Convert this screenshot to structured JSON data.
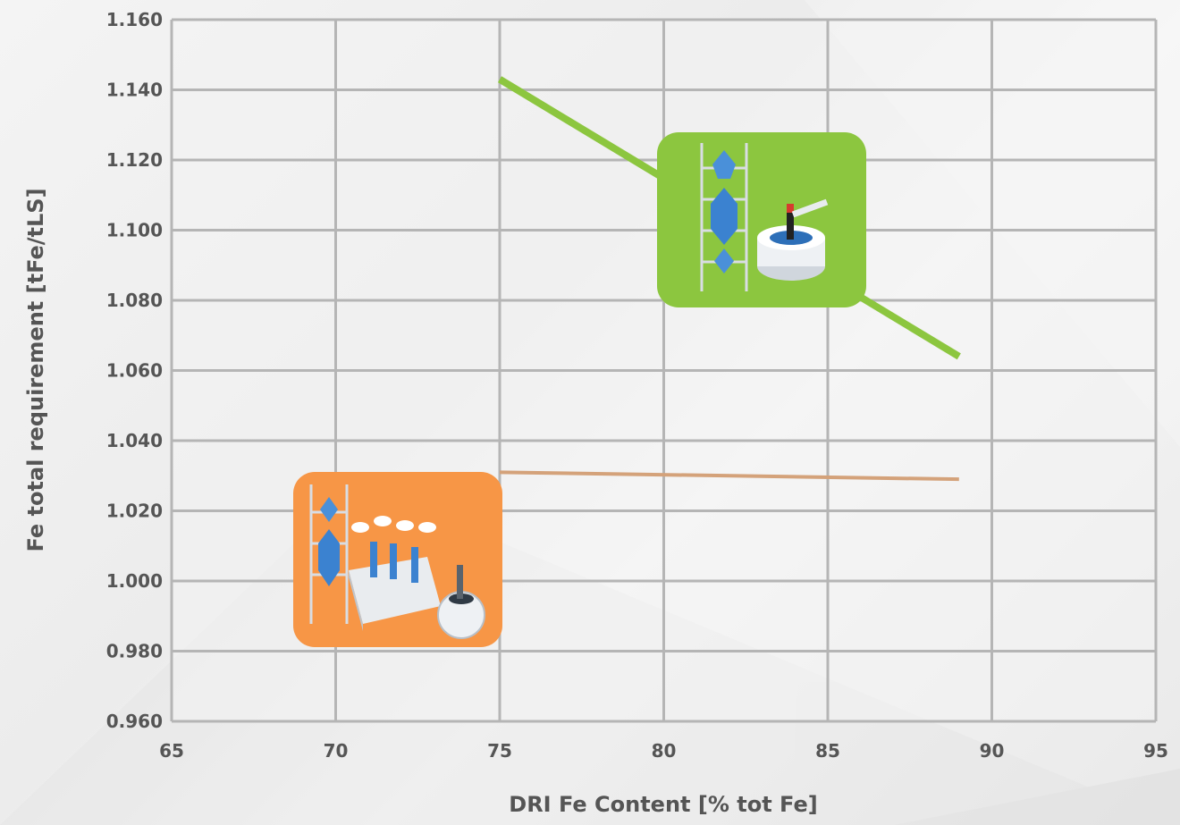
{
  "chart_data": {
    "type": "line",
    "xlabel": "DRI Fe Content [% tot Fe]",
    "ylabel": "Fe total requirement [tFe/tLS]",
    "xlim": [
      65,
      95
    ],
    "ylim": [
      0.96,
      1.16
    ],
    "x_ticks": [
      "65",
      "70",
      "75",
      "80",
      "85",
      "90",
      "95"
    ],
    "y_ticks": [
      "0.960",
      "0.980",
      "1.000",
      "1.020",
      "1.040",
      "1.060",
      "1.080",
      "1.100",
      "1.120",
      "1.140",
      "1.160"
    ],
    "grid": true,
    "series": [
      {
        "color": "#8cc63f",
        "x": [
          75,
          89
        ],
        "y": [
          1.143,
          1.064
        ]
      },
      {
        "color": "#d4a27a",
        "x": [
          75,
          89
        ],
        "y": [
          1.031,
          1.029
        ]
      }
    ],
    "annotations": [
      {
        "kind": "plant-illustration",
        "icon": "shaft-furnace-eaf-plant-icon",
        "background": "#8cc63f"
      },
      {
        "kind": "plant-illustration",
        "icon": "shaft-furnace-smelter-plant-icon",
        "background": "#f79646"
      }
    ]
  }
}
